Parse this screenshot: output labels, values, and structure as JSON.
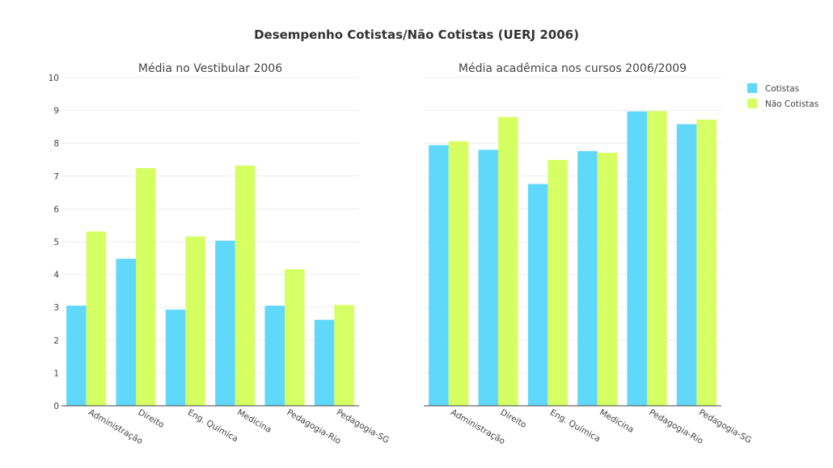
{
  "chart_data": {
    "title": "Desempenho Cotistas/Não Cotistas (UERJ 2006)",
    "type": "bar",
    "legend": {
      "placement": "top-right",
      "entries": [
        {
          "name": "Cotistas",
          "color": "#5fd8fb"
        },
        {
          "name": "Não Cotistas",
          "color": "#d5ff62"
        }
      ]
    },
    "ylim": [
      0,
      10
    ],
    "yticks": [
      "0",
      "1",
      "2",
      "3",
      "4",
      "5",
      "6",
      "7",
      "8",
      "9",
      "10"
    ],
    "grid": true,
    "panels": [
      {
        "title": "Média no Vestibular 2006",
        "show_y_ticks": true,
        "categories": [
          "Administração",
          "Direito",
          "Eng. Química",
          "Medicina",
          "Pedagogia-Rio",
          "Pedagogia-SG"
        ],
        "series": [
          {
            "name": "Cotistas",
            "values": [
              3.05,
              4.48,
              2.93,
              5.03,
              3.05,
              2.62
            ]
          },
          {
            "name": "Não Cotistas",
            "values": [
              5.31,
              7.24,
              5.16,
              7.32,
              4.16,
              3.07
            ]
          }
        ]
      },
      {
        "title": "Média acadêmica nos cursos 2006/2009",
        "show_y_ticks": false,
        "categories": [
          "Administração",
          "Direito",
          "Eng. Química",
          "Medicina",
          "Pedagogia-Rio",
          "Pedagogia-SG"
        ],
        "series": [
          {
            "name": "Cotistas",
            "values": [
              7.94,
              7.8,
              6.76,
              7.76,
              8.97,
              8.58
            ]
          },
          {
            "name": "Não Cotistas",
            "values": [
              8.06,
              8.8,
              7.49,
              7.71,
              8.98,
              8.72
            ]
          }
        ]
      }
    ]
  }
}
